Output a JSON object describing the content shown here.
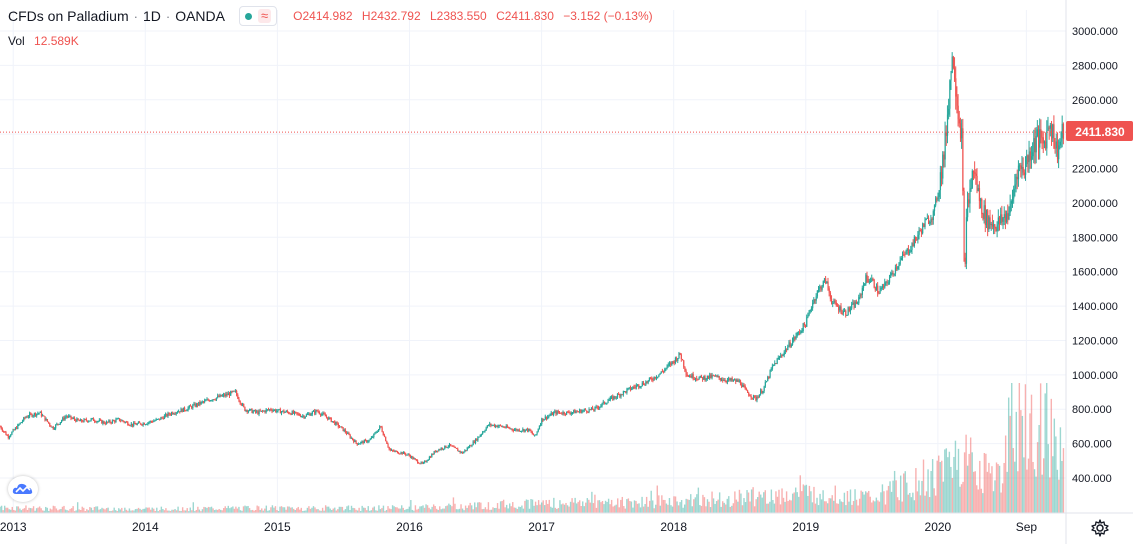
{
  "legend": {
    "symbol": "CFDs on Palladium",
    "interval": "1D",
    "exchange": "OANDA",
    "approx_icon": "≈",
    "open_key": "O",
    "open": "2414.982",
    "high_key": "H",
    "high": "2432.792",
    "low_key": "L",
    "low": "2383.550",
    "close_key": "C",
    "close": "2411.830",
    "change": "−3.152 (−0.13%)"
  },
  "volume": {
    "label": "Vol",
    "value": "12.589K"
  },
  "price_badge": "2411.830",
  "icons": {
    "logo": "tradingview-cloud-icon",
    "settings": "gear-icon"
  },
  "colors": {
    "up": "#26a69a",
    "down": "#ef5350",
    "grid": "#f0f3fa",
    "axis_text": "#131722",
    "badge_bg": "#ef5350"
  },
  "chart_data": {
    "type": "candlestick",
    "title": "CFDs on Palladium · 1D · OANDA",
    "xlabel": "",
    "ylabel": "",
    "ylim": [
      300,
      3000
    ],
    "y_ticks": [
      "400.000",
      "600.000",
      "800.000",
      "1000.000",
      "1200.000",
      "1400.000",
      "1600.000",
      "1800.000",
      "2000.000",
      "2200.000",
      "2400.000",
      "2600.000",
      "2800.000",
      "3000.000"
    ],
    "x_ticks": [
      {
        "label": "2013",
        "t": 2013.0
      },
      {
        "label": "2014",
        "t": 2014.0
      },
      {
        "label": "2015",
        "t": 2015.0
      },
      {
        "label": "2016",
        "t": 2016.0
      },
      {
        "label": "2017",
        "t": 2017.0
      },
      {
        "label": "2018",
        "t": 2018.0
      },
      {
        "label": "2019",
        "t": 2019.0
      },
      {
        "label": "2020",
        "t": 2020.0
      },
      {
        "label": "Sep",
        "t": 2020.67
      }
    ],
    "x_range": [
      2012.9,
      2020.97
    ],
    "last_price": 2411.83,
    "grid": true,
    "series": [
      {
        "name": "CFDs on Palladium",
        "values": [
          [
            2012.9,
            700
          ],
          [
            2012.96,
            640
          ],
          [
            2013.02,
            690
          ],
          [
            2013.1,
            760
          ],
          [
            2013.2,
            780
          ],
          [
            2013.3,
            690
          ],
          [
            2013.4,
            760
          ],
          [
            2013.5,
            730
          ],
          [
            2013.6,
            740
          ],
          [
            2013.7,
            720
          ],
          [
            2013.8,
            740
          ],
          [
            2013.9,
            710
          ],
          [
            2014.0,
            720
          ],
          [
            2014.1,
            740
          ],
          [
            2014.2,
            780
          ],
          [
            2014.3,
            800
          ],
          [
            2014.4,
            830
          ],
          [
            2014.5,
            860
          ],
          [
            2014.6,
            880
          ],
          [
            2014.68,
            900
          ],
          [
            2014.75,
            800
          ],
          [
            2014.85,
            780
          ],
          [
            2014.95,
            800
          ],
          [
            2015.0,
            790
          ],
          [
            2015.1,
            780
          ],
          [
            2015.2,
            760
          ],
          [
            2015.3,
            790
          ],
          [
            2015.4,
            740
          ],
          [
            2015.5,
            680
          ],
          [
            2015.6,
            600
          ],
          [
            2015.7,
            620
          ],
          [
            2015.78,
            700
          ],
          [
            2015.85,
            560
          ],
          [
            2015.95,
            545
          ],
          [
            2016.0,
            530
          ],
          [
            2016.05,
            500
          ],
          [
            2016.1,
            480
          ],
          [
            2016.2,
            560
          ],
          [
            2016.3,
            590
          ],
          [
            2016.4,
            545
          ],
          [
            2016.5,
            620
          ],
          [
            2016.6,
            710
          ],
          [
            2016.7,
            700
          ],
          [
            2016.8,
            680
          ],
          [
            2016.9,
            680
          ],
          [
            2016.95,
            640
          ],
          [
            2017.0,
            740
          ],
          [
            2017.1,
            780
          ],
          [
            2017.2,
            780
          ],
          [
            2017.3,
            790
          ],
          [
            2017.4,
            800
          ],
          [
            2017.5,
            850
          ],
          [
            2017.6,
            890
          ],
          [
            2017.7,
            930
          ],
          [
            2017.8,
            960
          ],
          [
            2017.9,
            1010
          ],
          [
            2018.0,
            1080
          ],
          [
            2018.05,
            1120
          ],
          [
            2018.1,
            1000
          ],
          [
            2018.2,
            980
          ],
          [
            2018.3,
            990
          ],
          [
            2018.4,
            970
          ],
          [
            2018.5,
            960
          ],
          [
            2018.55,
            900
          ],
          [
            2018.62,
            860
          ],
          [
            2018.68,
            920
          ],
          [
            2018.75,
            1050
          ],
          [
            2018.85,
            1150
          ],
          [
            2018.95,
            1250
          ],
          [
            2019.0,
            1300
          ],
          [
            2019.05,
            1420
          ],
          [
            2019.1,
            1500
          ],
          [
            2019.15,
            1550
          ],
          [
            2019.2,
            1420
          ],
          [
            2019.3,
            1360
          ],
          [
            2019.4,
            1430
          ],
          [
            2019.45,
            1560
          ],
          [
            2019.5,
            1550
          ],
          [
            2019.55,
            1480
          ],
          [
            2019.6,
            1520
          ],
          [
            2019.7,
            1650
          ],
          [
            2019.8,
            1750
          ],
          [
            2019.9,
            1880
          ],
          [
            2019.97,
            1940
          ],
          [
            2020.05,
            2300
          ],
          [
            2020.1,
            2800
          ],
          [
            2020.12,
            2850
          ],
          [
            2020.15,
            2550
          ],
          [
            2020.18,
            2400
          ],
          [
            2020.2,
            1560
          ],
          [
            2020.22,
            1960
          ],
          [
            2020.27,
            2200
          ],
          [
            2020.32,
            2000
          ],
          [
            2020.37,
            1900
          ],
          [
            2020.45,
            1870
          ],
          [
            2020.55,
            1960
          ],
          [
            2020.6,
            2200
          ],
          [
            2020.65,
            2200
          ],
          [
            2020.7,
            2300
          ],
          [
            2020.75,
            2380
          ],
          [
            2020.8,
            2340
          ],
          [
            2020.85,
            2480
          ],
          [
            2020.9,
            2300
          ],
          [
            2020.95,
            2411.83
          ]
        ]
      },
      {
        "name": "Vol",
        "values": [
          [
            2013.0,
            0.05
          ],
          [
            2014.0,
            0.04
          ],
          [
            2015.0,
            0.05
          ],
          [
            2016.0,
            0.05
          ],
          [
            2017.0,
            0.1
          ],
          [
            2018.0,
            0.12
          ],
          [
            2019.0,
            0.2
          ],
          [
            2019.5,
            0.15
          ],
          [
            2020.0,
            0.4
          ],
          [
            2020.15,
            0.6
          ],
          [
            2020.5,
            0.35
          ],
          [
            2020.55,
            0.95
          ],
          [
            2020.9,
            0.8
          ]
        ]
      }
    ]
  }
}
